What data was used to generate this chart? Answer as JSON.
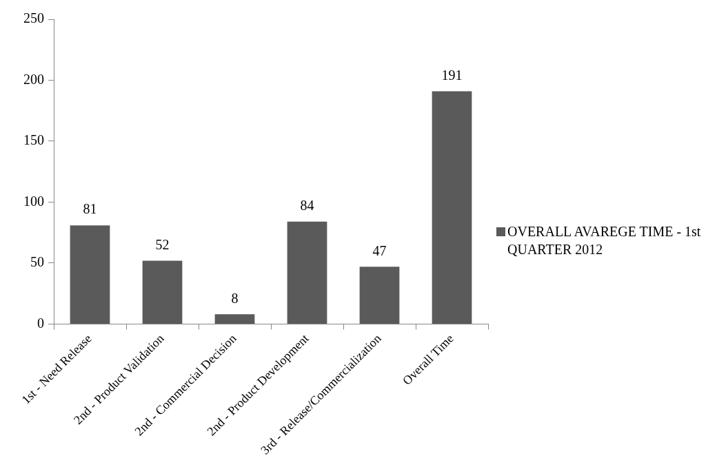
{
  "chart_data": {
    "type": "bar",
    "categories": [
      "1st - Need Release",
      "2nd - Product Validation",
      "2nd - Commercial Decision",
      "2nd - Product Development",
      "3rd - Release/Commercialization",
      "Overall Time"
    ],
    "series": [
      {
        "name": "OVERALL AVAREGE TIME - 1st QUARTER 2012",
        "color": "#5a5a5a",
        "values": [
          81,
          52,
          8,
          84,
          47,
          191
        ]
      }
    ],
    "ylim": [
      0,
      250
    ],
    "yticks": [
      0,
      50,
      100,
      150,
      200,
      250
    ],
    "grid": false,
    "legend": "right",
    "data_labels": true
  }
}
